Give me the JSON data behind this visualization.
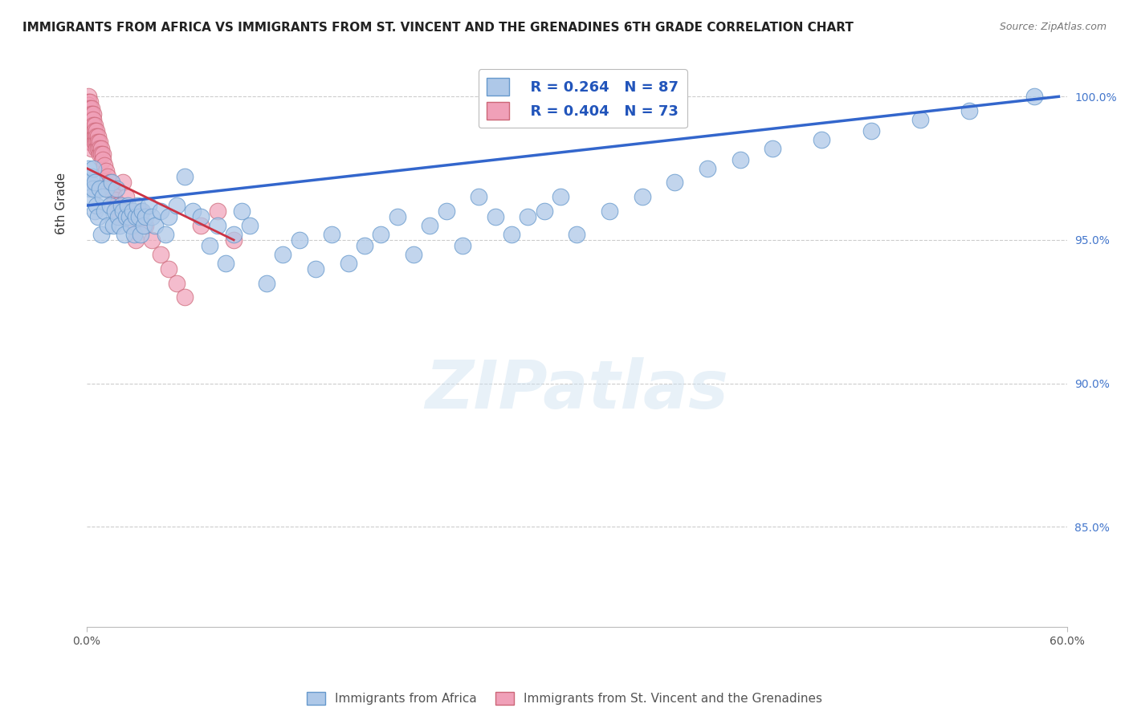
{
  "title": "IMMIGRANTS FROM AFRICA VS IMMIGRANTS FROM ST. VINCENT AND THE GRENADINES 6TH GRADE CORRELATION CHART",
  "source": "Source: ZipAtlas.com",
  "ylabel": "6th Grade",
  "yaxis_labels": [
    "100.0%",
    "95.0%",
    "90.0%",
    "85.0%"
  ],
  "yaxis_values": [
    1.0,
    0.95,
    0.9,
    0.85
  ],
  "xlim": [
    0.0,
    0.6
  ],
  "ylim": [
    0.815,
    1.012
  ],
  "legend_r1": "R = 0.264",
  "legend_n1": "N = 87",
  "legend_r2": "R = 0.404",
  "legend_n2": "N = 73",
  "blue_color": "#aec8e8",
  "blue_edge": "#6699cc",
  "pink_color": "#f0a0b8",
  "pink_edge": "#cc6677",
  "trendline_blue": "#3366cc",
  "trendline_pink": "#cc3344",
  "blue_scatter_x": [
    0.001,
    0.002,
    0.002,
    0.003,
    0.003,
    0.004,
    0.004,
    0.005,
    0.005,
    0.006,
    0.007,
    0.008,
    0.009,
    0.01,
    0.011,
    0.012,
    0.013,
    0.014,
    0.015,
    0.016,
    0.017,
    0.018,
    0.019,
    0.02,
    0.021,
    0.022,
    0.023,
    0.024,
    0.025,
    0.026,
    0.027,
    0.028,
    0.029,
    0.03,
    0.031,
    0.032,
    0.033,
    0.034,
    0.035,
    0.036,
    0.038,
    0.04,
    0.042,
    0.045,
    0.048,
    0.05,
    0.055,
    0.06,
    0.065,
    0.07,
    0.075,
    0.08,
    0.085,
    0.09,
    0.095,
    0.1,
    0.11,
    0.12,
    0.13,
    0.14,
    0.15,
    0.16,
    0.17,
    0.18,
    0.19,
    0.2,
    0.21,
    0.22,
    0.23,
    0.24,
    0.25,
    0.26,
    0.27,
    0.28,
    0.29,
    0.3,
    0.32,
    0.34,
    0.36,
    0.38,
    0.4,
    0.42,
    0.45,
    0.48,
    0.51,
    0.54,
    0.58
  ],
  "blue_scatter_y": [
    0.975,
    0.97,
    0.968,
    0.972,
    0.965,
    0.968,
    0.975,
    0.96,
    0.97,
    0.962,
    0.958,
    0.968,
    0.952,
    0.965,
    0.96,
    0.968,
    0.955,
    0.962,
    0.97,
    0.955,
    0.96,
    0.968,
    0.958,
    0.955,
    0.962,
    0.96,
    0.952,
    0.958,
    0.962,
    0.958,
    0.955,
    0.96,
    0.952,
    0.958,
    0.962,
    0.958,
    0.952,
    0.96,
    0.955,
    0.958,
    0.962,
    0.958,
    0.955,
    0.96,
    0.952,
    0.958,
    0.962,
    0.972,
    0.96,
    0.958,
    0.948,
    0.955,
    0.942,
    0.952,
    0.96,
    0.955,
    0.935,
    0.945,
    0.95,
    0.94,
    0.952,
    0.942,
    0.948,
    0.952,
    0.958,
    0.945,
    0.955,
    0.96,
    0.948,
    0.965,
    0.958,
    0.952,
    0.958,
    0.96,
    0.965,
    0.952,
    0.96,
    0.965,
    0.97,
    0.975,
    0.978,
    0.982,
    0.985,
    0.988,
    0.992,
    0.995,
    1.0
  ],
  "pink_scatter_x": [
    0.001,
    0.001,
    0.001,
    0.001,
    0.001,
    0.001,
    0.001,
    0.001,
    0.001,
    0.001,
    0.002,
    0.002,
    0.002,
    0.002,
    0.002,
    0.002,
    0.002,
    0.002,
    0.003,
    0.003,
    0.003,
    0.003,
    0.003,
    0.003,
    0.003,
    0.003,
    0.004,
    0.004,
    0.004,
    0.004,
    0.005,
    0.005,
    0.005,
    0.005,
    0.006,
    0.006,
    0.006,
    0.006,
    0.007,
    0.007,
    0.007,
    0.008,
    0.008,
    0.008,
    0.009,
    0.009,
    0.01,
    0.01,
    0.011,
    0.012,
    0.013,
    0.014,
    0.015,
    0.016,
    0.017,
    0.018,
    0.019,
    0.02,
    0.022,
    0.024,
    0.026,
    0.028,
    0.03,
    0.033,
    0.036,
    0.04,
    0.045,
    0.05,
    0.055,
    0.06,
    0.07,
    0.08,
    0.09
  ],
  "pink_scatter_y": [
    1.0,
    0.998,
    0.997,
    0.996,
    0.995,
    0.994,
    0.993,
    0.992,
    0.99,
    0.988,
    0.998,
    0.996,
    0.994,
    0.992,
    0.99,
    0.988,
    0.986,
    0.984,
    0.996,
    0.994,
    0.992,
    0.99,
    0.988,
    0.986,
    0.984,
    0.982,
    0.994,
    0.992,
    0.99,
    0.988,
    0.99,
    0.988,
    0.986,
    0.984,
    0.988,
    0.986,
    0.984,
    0.982,
    0.986,
    0.984,
    0.982,
    0.984,
    0.982,
    0.98,
    0.982,
    0.98,
    0.98,
    0.978,
    0.976,
    0.974,
    0.972,
    0.97,
    0.968,
    0.966,
    0.964,
    0.962,
    0.96,
    0.958,
    0.97,
    0.965,
    0.96,
    0.955,
    0.95,
    0.96,
    0.955,
    0.95,
    0.945,
    0.94,
    0.935,
    0.93,
    0.955,
    0.96,
    0.95
  ],
  "blue_trend_x": [
    0.0,
    0.595
  ],
  "blue_trend_y": [
    0.962,
    1.0
  ],
  "pink_trend_x": [
    0.0,
    0.09
  ],
  "pink_trend_y": [
    0.975,
    0.95
  ],
  "watermark": "ZIPatlas",
  "title_fontsize": 11,
  "source_fontsize": 9
}
